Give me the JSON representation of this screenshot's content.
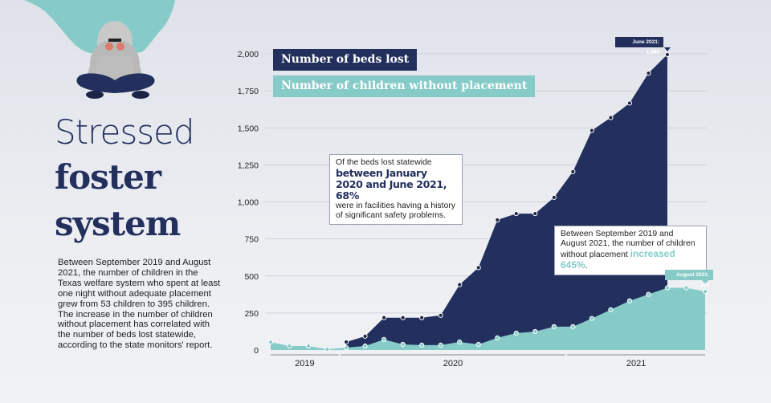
{
  "title": {
    "line1": "Stressed",
    "line2": "foster",
    "line3": "system"
  },
  "body_text": "Between September 2019 and August 2021, the number of children in the Texas welfare system who spent at least one night without adequate placement grew from 53 children to 395 children. The increase in the number of children without placement has correlated with the number of beds lost statewide, according to the state monitors' report.",
  "notes": {
    "note1": {
      "pre": "Of the beds lost statewide",
      "highlight": "between January 2020 and June 2021, 68%",
      "post": "were in facilities having a history of significant safety problems."
    },
    "note2": {
      "pre": "Between September 2019 and August 2021, the number of children without placement",
      "highlight": "increased 645%",
      "post": "."
    }
  },
  "callouts": {
    "beds": "June 2021: 1,995",
    "children": "August 2021: 395"
  },
  "colors": {
    "beds": "#23305e",
    "children": "#86cbc8",
    "background": "#e6e8ed"
  },
  "chart_data": {
    "type": "area",
    "title": "",
    "xlabel": "",
    "ylabel": "",
    "ylim": [
      0,
      2000
    ],
    "yticks": [
      0,
      250,
      500,
      750,
      1000,
      1250,
      1500,
      1750,
      2000
    ],
    "ytick_labels": [
      "0",
      "250",
      "500",
      "750",
      "1,000",
      "1,250",
      "1,500",
      "1,750",
      "2,000"
    ],
    "x_year_labels": [
      "2019",
      "2020",
      "2021"
    ],
    "grid": true,
    "legend": "top-left",
    "x": [
      "2019-09",
      "2019-10",
      "2019-11",
      "2019-12",
      "2020-01",
      "2020-02",
      "2020-03",
      "2020-04",
      "2020-05",
      "2020-06",
      "2020-07",
      "2020-08",
      "2020-09",
      "2020-10",
      "2020-11",
      "2020-12",
      "2021-01",
      "2021-02",
      "2021-03",
      "2021-04",
      "2021-05",
      "2021-06",
      "2021-07",
      "2021-08"
    ],
    "series": [
      {
        "name": "Number of beds lost",
        "values": [
          null,
          null,
          null,
          null,
          54,
          93,
          218,
          218,
          218,
          234,
          441,
          556,
          878,
          921,
          921,
          1030,
          1204,
          1482,
          1569,
          1667,
          1869,
          1995,
          null,
          null
        ]
      },
      {
        "name": "Number of children without placement",
        "values": [
          53,
          27,
          27,
          5,
          16,
          27,
          71,
          38,
          33,
          33,
          54,
          38,
          82,
          114,
          125,
          158,
          158,
          213,
          272,
          332,
          376,
          420,
          420,
          395
        ]
      }
    ]
  }
}
